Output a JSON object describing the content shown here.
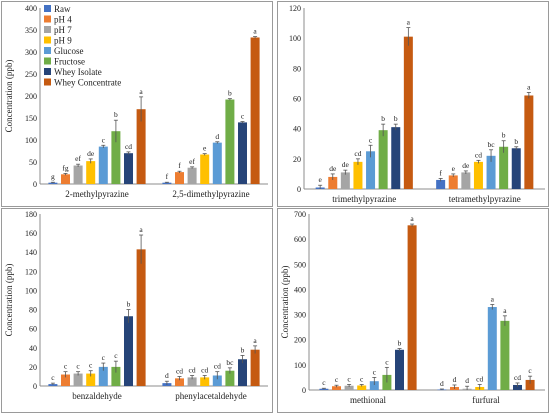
{
  "figure": {
    "background": "#ffffff",
    "panel_border_color": "#9a9a9a",
    "axis_color": "#8c8c8c",
    "errorbar_color": "#555555"
  },
  "legend": {
    "placement": "top-left of first panel",
    "items": [
      {
        "name": "Raw",
        "color": "#4472C4"
      },
      {
        "name": "pH 4",
        "color": "#ED7D31"
      },
      {
        "name": "pH 7",
        "color": "#A5A5A5"
      },
      {
        "name": "pH 9",
        "color": "#FFC000"
      },
      {
        "name": "Glucose",
        "color": "#5B9BD5"
      },
      {
        "name": "Fructose",
        "color": "#70AD47"
      },
      {
        "name": "Whey Isolate",
        "color": "#264478"
      },
      {
        "name": "Whey Concentrate",
        "color": "#C55A11"
      }
    ]
  },
  "chart_data": [
    {
      "type": "bar",
      "ylabel": "Concentration (ppb)",
      "ylim": [
        0,
        400
      ],
      "yticks": [
        0,
        50,
        100,
        150,
        200,
        250,
        300,
        350,
        400
      ],
      "categories": [
        "2-methylpyrazine",
        "2,5-dimethylpyrazine"
      ],
      "grid": false,
      "series": [
        {
          "name": "Raw",
          "values": [
            3,
            3
          ],
          "errors": [
            1,
            1
          ],
          "letters": [
            "g",
            "f"
          ]
        },
        {
          "name": "pH 4",
          "values": [
            22,
            27
          ],
          "errors": [
            2,
            2
          ],
          "letters": [
            "fg",
            "f"
          ]
        },
        {
          "name": "pH 7",
          "values": [
            42,
            37
          ],
          "errors": [
            3,
            2
          ],
          "letters": [
            "ef",
            "ef"
          ]
        },
        {
          "name": "pH 9",
          "values": [
            52,
            67
          ],
          "errors": [
            5,
            2
          ],
          "letters": [
            "de",
            "e"
          ]
        },
        {
          "name": "Glucose",
          "values": [
            85,
            94
          ],
          "errors": [
            3,
            2
          ],
          "letters": [
            "c",
            "d"
          ]
        },
        {
          "name": "Fructose",
          "values": [
            120,
            192
          ],
          "errors": [
            25,
            2
          ],
          "letters": [
            "b",
            "b"
          ]
        },
        {
          "name": "Whey Isolate",
          "values": [
            70,
            140
          ],
          "errors": [
            3,
            2
          ],
          "letters": [
            "cd",
            "c"
          ]
        },
        {
          "name": "Whey Concentrate",
          "values": [
            170,
            333
          ],
          "errors": [
            28,
            2
          ],
          "letters": [
            "a",
            "a"
          ]
        }
      ]
    },
    {
      "type": "bar",
      "ylabel": "",
      "ylim": [
        0,
        120
      ],
      "yticks": [
        0,
        20,
        40,
        60,
        80,
        100,
        120
      ],
      "categories": [
        "trimethylpyrazine",
        "tetramethylpyrazine"
      ],
      "grid": false,
      "series": [
        {
          "name": "Raw",
          "values": [
            1,
            6
          ],
          "errors": [
            1.5,
            1
          ],
          "letters": [
            "e",
            "f"
          ]
        },
        {
          "name": "pH 4",
          "values": [
            8,
            9
          ],
          "errors": [
            2,
            1
          ],
          "letters": [
            "de",
            "e"
          ]
        },
        {
          "name": "pH 7",
          "values": [
            11,
            11
          ],
          "errors": [
            1.5,
            1
          ],
          "letters": [
            "de",
            "de"
          ]
        },
        {
          "name": "pH 9",
          "values": [
            18,
            18
          ],
          "errors": [
            2,
            1
          ],
          "letters": [
            "cd",
            "cd"
          ]
        },
        {
          "name": "Glucose",
          "values": [
            25,
            22
          ],
          "errors": [
            4,
            4
          ],
          "letters": [
            "c",
            "bc"
          ]
        },
        {
          "name": "Fructose",
          "values": [
            39,
            28
          ],
          "errors": [
            4,
            4
          ],
          "letters": [
            "b",
            "b"
          ]
        },
        {
          "name": "Whey Isolate",
          "values": [
            41,
            27
          ],
          "errors": [
            2,
            1
          ],
          "letters": [
            "b",
            "b"
          ]
        },
        {
          "name": "Whey Concentrate",
          "values": [
            101,
            62
          ],
          "errors": [
            6,
            2
          ],
          "letters": [
            "a",
            "a"
          ]
        }
      ]
    },
    {
      "type": "bar",
      "ylabel": "Concentration (ppb)",
      "ylim": [
        0,
        180
      ],
      "yticks": [
        0,
        20,
        40,
        60,
        80,
        100,
        120,
        140,
        160,
        180
      ],
      "categories": [
        "benzaldehyde",
        "phenylacetaldehyde"
      ],
      "grid": false,
      "series": [
        {
          "name": "Raw",
          "values": [
            2,
            3
          ],
          "errors": [
            1,
            2
          ],
          "letters": [
            "c",
            "d"
          ]
        },
        {
          "name": "pH 4",
          "values": [
            12,
            8
          ],
          "errors": [
            3,
            2
          ],
          "letters": [
            "c",
            "cd"
          ]
        },
        {
          "name": "pH 7",
          "values": [
            13,
            9
          ],
          "errors": [
            2,
            2
          ],
          "letters": [
            "c",
            "cd"
          ]
        },
        {
          "name": "pH 9",
          "values": [
            13,
            9
          ],
          "errors": [
            3,
            2
          ],
          "letters": [
            "c",
            "cd"
          ]
        },
        {
          "name": "Glucose",
          "values": [
            20,
            11
          ],
          "errors": [
            4,
            4
          ],
          "letters": [
            "c",
            "cd"
          ]
        },
        {
          "name": "Fructose",
          "values": [
            20,
            16
          ],
          "errors": [
            6,
            3
          ],
          "letters": [
            "c",
            "bc"
          ]
        },
        {
          "name": "Whey Isolate",
          "values": [
            73,
            28
          ],
          "errors": [
            7,
            4
          ],
          "letters": [
            "b",
            "b"
          ]
        },
        {
          "name": "Whey Concentrate",
          "values": [
            143,
            38
          ],
          "errors": [
            15,
            4
          ],
          "letters": [
            "a",
            "a"
          ]
        }
      ]
    },
    {
      "type": "bar",
      "ylabel": "Concentration (ppb)",
      "ylim": [
        0,
        700
      ],
      "yticks": [
        0,
        100,
        200,
        300,
        400,
        500,
        600,
        700
      ],
      "categories": [
        "methional",
        "furfural"
      ],
      "grid": false,
      "series": [
        {
          "name": "Raw",
          "values": [
            5,
            2
          ],
          "errors": [
            2,
            2
          ],
          "letters": [
            "c",
            "d"
          ]
        },
        {
          "name": "pH 4",
          "values": [
            15,
            12
          ],
          "errors": [
            4,
            8
          ],
          "letters": [
            "c",
            "d"
          ]
        },
        {
          "name": "pH 7",
          "values": [
            17,
            5
          ],
          "errors": [
            5,
            10
          ],
          "letters": [
            "c",
            "d"
          ]
        },
        {
          "name": "pH 9",
          "values": [
            18,
            12
          ],
          "errors": [
            4,
            10
          ],
          "letters": [
            "c",
            "cd"
          ]
        },
        {
          "name": "Glucose",
          "values": [
            35,
            330
          ],
          "errors": [
            15,
            10
          ],
          "letters": [
            "c",
            "a"
          ]
        },
        {
          "name": "Fructose",
          "values": [
            60,
            275
          ],
          "errors": [
            30,
            20
          ],
          "letters": [
            "c",
            "a"
          ]
        },
        {
          "name": "Whey Isolate",
          "values": [
            160,
            20
          ],
          "errors": [
            5,
            8
          ],
          "letters": [
            "b",
            "cd"
          ]
        },
        {
          "name": "Whey Concentrate",
          "values": [
            655,
            40
          ],
          "errors": [
            5,
            15
          ],
          "letters": [
            "a",
            "c"
          ]
        }
      ]
    }
  ]
}
